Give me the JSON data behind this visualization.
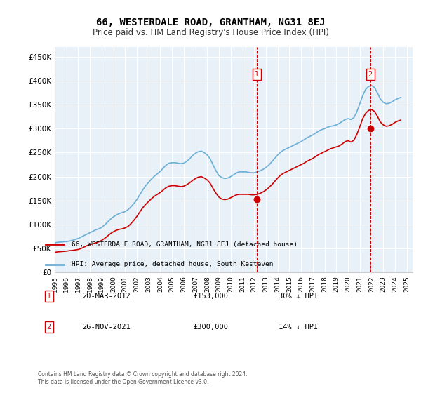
{
  "title": "66, WESTERDALE ROAD, GRANTHAM, NG31 8EJ",
  "subtitle": "Price paid vs. HM Land Registry's House Price Index (HPI)",
  "ylabel_ticks": [
    "£0",
    "£50K",
    "£100K",
    "£150K",
    "£200K",
    "£250K",
    "£300K",
    "£350K",
    "£400K",
    "£450K"
  ],
  "ylim": [
    0,
    470000
  ],
  "xlim_start": 1995.0,
  "xlim_end": 2025.5,
  "xticks": [
    1995,
    1996,
    1997,
    1998,
    1999,
    2000,
    2001,
    2002,
    2003,
    2004,
    2005,
    2006,
    2007,
    2008,
    2009,
    2010,
    2011,
    2012,
    2013,
    2014,
    2015,
    2016,
    2017,
    2018,
    2019,
    2020,
    2021,
    2022,
    2023,
    2024,
    2025
  ],
  "hpi_color": "#6baed6",
  "price_color": "#cc0000",
  "marker_color": "#cc0000",
  "vline_color": "#cc0000",
  "annotation_box_color": "#cc0000",
  "background_color": "#e8f0f8",
  "plot_bg_color": "#e8f0f8",
  "grid_color": "#ffffff",
  "legend_box_color": "#000000",
  "transaction1_date": "20-MAR-2012",
  "transaction1_price": 153000,
  "transaction1_pct": "30% ↓ HPI",
  "transaction1_x": 2012.22,
  "transaction2_date": "26-NOV-2021",
  "transaction2_price": 300000,
  "transaction2_pct": "14% ↓ HPI",
  "transaction2_x": 2021.9,
  "legend_line1": "66, WESTERDALE ROAD, GRANTHAM, NG31 8EJ (detached house)",
  "legend_line2": "HPI: Average price, detached house, South Kesteven",
  "footer": "Contains HM Land Registry data © Crown copyright and database right 2024.\nThis data is licensed under the Open Government Licence v3.0.",
  "hpi_data_x": [
    1995.0,
    1995.25,
    1995.5,
    1995.75,
    1996.0,
    1996.25,
    1996.5,
    1996.75,
    1997.0,
    1997.25,
    1997.5,
    1997.75,
    1998.0,
    1998.25,
    1998.5,
    1998.75,
    1999.0,
    1999.25,
    1999.5,
    1999.75,
    2000.0,
    2000.25,
    2000.5,
    2000.75,
    2001.0,
    2001.25,
    2001.5,
    2001.75,
    2002.0,
    2002.25,
    2002.5,
    2002.75,
    2003.0,
    2003.25,
    2003.5,
    2003.75,
    2004.0,
    2004.25,
    2004.5,
    2004.75,
    2005.0,
    2005.25,
    2005.5,
    2005.75,
    2006.0,
    2006.25,
    2006.5,
    2006.75,
    2007.0,
    2007.25,
    2007.5,
    2007.75,
    2008.0,
    2008.25,
    2008.5,
    2008.75,
    2009.0,
    2009.25,
    2009.5,
    2009.75,
    2010.0,
    2010.25,
    2010.5,
    2010.75,
    2011.0,
    2011.25,
    2011.5,
    2011.75,
    2012.0,
    2012.25,
    2012.5,
    2012.75,
    2013.0,
    2013.25,
    2013.5,
    2013.75,
    2014.0,
    2014.25,
    2014.5,
    2014.75,
    2015.0,
    2015.25,
    2015.5,
    2015.75,
    2016.0,
    2016.25,
    2016.5,
    2016.75,
    2017.0,
    2017.25,
    2017.5,
    2017.75,
    2018.0,
    2018.25,
    2018.5,
    2018.75,
    2019.0,
    2019.25,
    2019.5,
    2019.75,
    2020.0,
    2020.25,
    2020.5,
    2020.75,
    2021.0,
    2021.25,
    2021.5,
    2021.75,
    2022.0,
    2022.25,
    2022.5,
    2022.75,
    2023.0,
    2023.25,
    2023.5,
    2023.75,
    2024.0,
    2024.25,
    2024.5
  ],
  "hpi_data_y": [
    62000,
    63000,
    63500,
    64000,
    64500,
    65500,
    67000,
    69000,
    71000,
    74000,
    77000,
    80000,
    83000,
    86000,
    89000,
    91000,
    94000,
    99000,
    105000,
    111000,
    116000,
    120000,
    123000,
    125000,
    127000,
    131000,
    137000,
    144000,
    152000,
    162000,
    172000,
    181000,
    188000,
    195000,
    201000,
    206000,
    211000,
    218000,
    224000,
    228000,
    229000,
    229000,
    228000,
    227000,
    228000,
    232000,
    237000,
    244000,
    249000,
    252000,
    253000,
    250000,
    245000,
    237000,
    224000,
    212000,
    202000,
    198000,
    196000,
    197000,
    200000,
    204000,
    208000,
    210000,
    210000,
    210000,
    209000,
    208000,
    208000,
    210000,
    212000,
    215000,
    219000,
    224000,
    231000,
    238000,
    245000,
    251000,
    255000,
    258000,
    261000,
    264000,
    267000,
    270000,
    273000,
    277000,
    281000,
    284000,
    287000,
    291000,
    295000,
    298000,
    300000,
    303000,
    305000,
    306000,
    308000,
    311000,
    315000,
    319000,
    321000,
    319000,
    323000,
    335000,
    352000,
    369000,
    382000,
    388000,
    390000,
    386000,
    375000,
    362000,
    355000,
    352000,
    353000,
    356000,
    360000,
    363000,
    365000
  ],
  "price_data_x": [
    1995.0,
    1995.25,
    1995.5,
    1995.75,
    1996.0,
    1996.25,
    1996.5,
    1996.75,
    1997.0,
    1997.25,
    1997.5,
    1997.75,
    1998.0,
    1998.25,
    1998.5,
    1998.75,
    1999.0,
    1999.25,
    1999.5,
    1999.75,
    2000.0,
    2000.25,
    2000.5,
    2000.75,
    2001.0,
    2001.25,
    2001.5,
    2001.75,
    2002.0,
    2002.25,
    2002.5,
    2002.75,
    2003.0,
    2003.25,
    2003.5,
    2003.75,
    2004.0,
    2004.25,
    2004.5,
    2004.75,
    2005.0,
    2005.25,
    2005.5,
    2005.75,
    2006.0,
    2006.25,
    2006.5,
    2006.75,
    2007.0,
    2007.25,
    2007.5,
    2007.75,
    2008.0,
    2008.25,
    2008.5,
    2008.75,
    2009.0,
    2009.25,
    2009.5,
    2009.75,
    2010.0,
    2010.25,
    2010.5,
    2010.75,
    2011.0,
    2011.25,
    2011.5,
    2011.75,
    2012.0,
    2012.25,
    2012.5,
    2012.75,
    2013.0,
    2013.25,
    2013.5,
    2013.75,
    2014.0,
    2014.25,
    2014.5,
    2014.75,
    2015.0,
    2015.25,
    2015.5,
    2015.75,
    2016.0,
    2016.25,
    2016.5,
    2016.75,
    2017.0,
    2017.25,
    2017.5,
    2017.75,
    2018.0,
    2018.25,
    2018.5,
    2018.75,
    2019.0,
    2019.25,
    2019.5,
    2019.75,
    2020.0,
    2020.25,
    2020.5,
    2020.75,
    2021.0,
    2021.25,
    2021.5,
    2021.75,
    2022.0,
    2022.25,
    2022.5,
    2022.75,
    2023.0,
    2023.25,
    2023.5,
    2023.75,
    2024.0,
    2024.25,
    2024.5
  ],
  "price_data_y": [
    42000,
    43000,
    43500,
    44000,
    44500,
    45500,
    46000,
    47000,
    48000,
    50000,
    53000,
    56000,
    58000,
    60000,
    62000,
    64000,
    67000,
    71000,
    76000,
    81000,
    85000,
    88000,
    90000,
    91000,
    93000,
    96000,
    102000,
    109000,
    117000,
    126000,
    135000,
    142000,
    148000,
    154000,
    159000,
    163000,
    167000,
    172000,
    177000,
    180000,
    181000,
    181000,
    180000,
    179000,
    180000,
    183000,
    187000,
    192000,
    196000,
    199000,
    200000,
    197000,
    193000,
    186000,
    175000,
    165000,
    157000,
    153000,
    152000,
    153000,
    156000,
    159000,
    162000,
    163000,
    163000,
    163000,
    163000,
    162000,
    162000,
    163000,
    165000,
    168000,
    172000,
    177000,
    183000,
    190000,
    197000,
    203000,
    207000,
    210000,
    213000,
    216000,
    219000,
    222000,
    225000,
    228000,
    232000,
    235000,
    238000,
    242000,
    246000,
    249000,
    252000,
    255000,
    258000,
    260000,
    262000,
    264000,
    268000,
    273000,
    275000,
    272000,
    276000,
    288000,
    304000,
    321000,
    332000,
    338000,
    340000,
    336000,
    326000,
    314000,
    308000,
    305000,
    306000,
    309000,
    313000,
    316000,
    318000
  ]
}
